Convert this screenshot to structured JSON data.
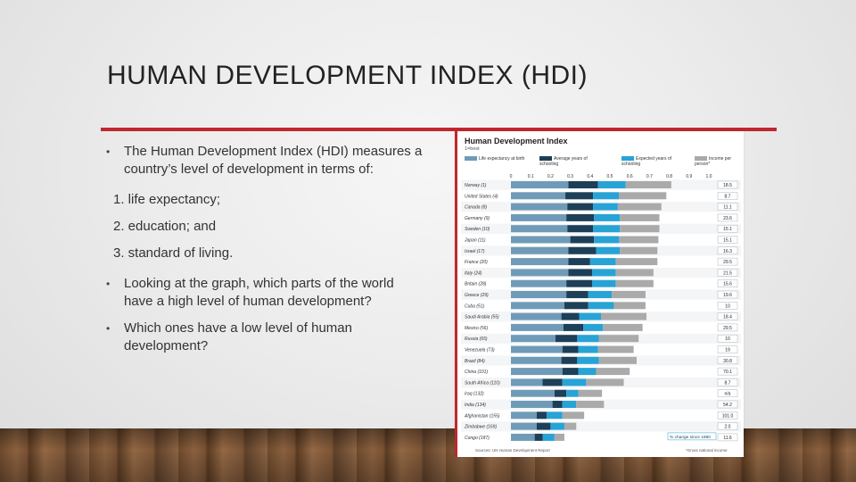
{
  "slide": {
    "title": "HUMAN DEVELOPMENT INDEX (HDI)",
    "bullets": [
      "The Human Development Index (HDI) measures a country’s level of development in terms of:",
      "Looking at the graph, which parts of the world have a high level of human development?",
      "Which ones have a low level of human development?"
    ],
    "items": [
      "1. life expectancy;",
      "2. education; and",
      "3. standard of living."
    ],
    "accent_color": "#c0282e"
  },
  "chart_data": {
    "type": "bar",
    "title": "Human Development Index",
    "subtitle": "1=best",
    "legend": [
      "Life expectancy at birth",
      "Average years of schooling",
      "Expected years of schooling",
      "Income per person*"
    ],
    "colors": [
      "#6f9bb8",
      "#1d3f57",
      "#27a3d6",
      "#aaaaaa"
    ],
    "xlim": [
      0,
      1
    ],
    "xticks": [
      "0",
      "0.1",
      "0.2",
      "0.3",
      "0.4",
      "0.5",
      "0.6",
      "0.7",
      "0.8",
      "0.9",
      "1.0"
    ],
    "change_label": "% change since 1980",
    "countries": [
      "Norway (1)",
      "United States (4)",
      "Canada (8)",
      "Germany (9)",
      "Sweden (10)",
      "Japan (11)",
      "Israel (17)",
      "France (20)",
      "Italy (24)",
      "Britain (28)",
      "Greece (29)",
      "Cuba (51)",
      "Saudi Arabia (55)",
      "Mexico (56)",
      "Russia (65)",
      "Venezuela (73)",
      "Brazil (84)",
      "China (101)",
      "South Africa (110)",
      "Iraq (132)",
      "India (134)",
      "Afghanistan (155)",
      "Zimbabwe (169)",
      "Congo (187)"
    ],
    "series": [
      {
        "name": "Life expectancy at birth",
        "values": [
          0.29,
          0.275,
          0.285,
          0.28,
          0.285,
          0.3,
          0.29,
          0.29,
          0.29,
          0.28,
          0.28,
          0.27,
          0.255,
          0.265,
          0.225,
          0.26,
          0.255,
          0.26,
          0.16,
          0.22,
          0.21,
          0.13,
          0.13,
          0.12
        ]
      },
      {
        "name": "Average years of schooling",
        "values": [
          0.15,
          0.14,
          0.13,
          0.14,
          0.13,
          0.12,
          0.14,
          0.11,
          0.12,
          0.13,
          0.11,
          0.12,
          0.09,
          0.1,
          0.11,
          0.08,
          0.08,
          0.08,
          0.1,
          0.06,
          0.05,
          0.05,
          0.07,
          0.04
        ]
      },
      {
        "name": "Expected years of schooling",
        "values": [
          0.14,
          0.13,
          0.125,
          0.13,
          0.135,
          0.125,
          0.12,
          0.13,
          0.12,
          0.12,
          0.12,
          0.13,
          0.11,
          0.1,
          0.11,
          0.1,
          0.11,
          0.09,
          0.12,
          0.06,
          0.07,
          0.08,
          0.07,
          0.06
        ]
      },
      {
        "name": "Income per person*",
        "values": [
          0.23,
          0.24,
          0.22,
          0.2,
          0.2,
          0.2,
          0.19,
          0.21,
          0.19,
          0.19,
          0.17,
          0.16,
          0.23,
          0.2,
          0.2,
          0.18,
          0.19,
          0.17,
          0.19,
          0.12,
          0.14,
          0.11,
          0.06,
          0.05
        ]
      }
    ],
    "change_values": [
      "18.5",
      "8.7",
      "11.1",
      "23.6",
      "15.1",
      "15.1",
      "16.3",
      "29.5",
      "21.5",
      "15.6",
      "19.6",
      "10",
      "18.4",
      "29.5",
      "10",
      "19",
      "30.8",
      "70.1",
      "8.7",
      "n/a",
      "54.2",
      "101.0",
      "2.0",
      "11.6"
    ],
    "source": "Sources: UN Human Development Report",
    "note": "*Gross national income"
  }
}
